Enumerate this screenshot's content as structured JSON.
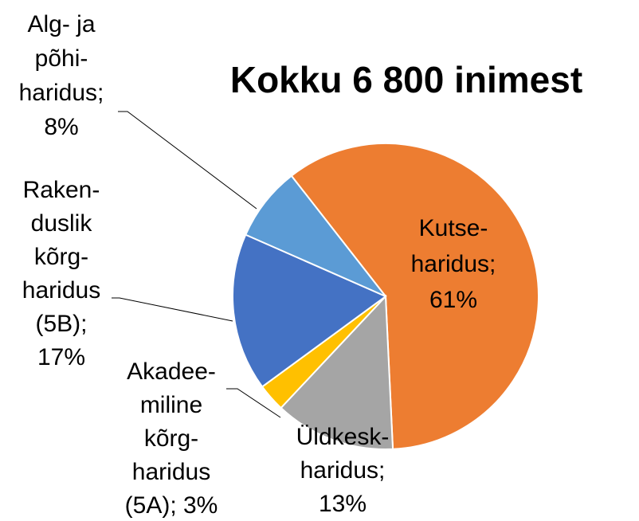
{
  "chart_data": {
    "type": "pie",
    "title": "Kokku  6 800 inimest",
    "labels": [
      [
        "Kutse-",
        "haridus;",
        "61%"
      ],
      [
        "Üldkesk-",
        "haridus;",
        "13%"
      ],
      [
        "Akadee-",
        "miline",
        "kõrg-",
        "haridus",
        "(5A); 3%"
      ],
      [
        "Raken-",
        "duslik",
        "kõrg-",
        "haridus",
        "(5B);",
        "17%"
      ],
      [
        "Alg- ja",
        "põhi-",
        "haridus;",
        "8%"
      ]
    ],
    "values": [
      61,
      13,
      3,
      17,
      8
    ],
    "colors": [
      "#ED7D31",
      "#A5A5A5",
      "#FFC000",
      "#4472C4",
      "#5B9BD5"
    ]
  }
}
